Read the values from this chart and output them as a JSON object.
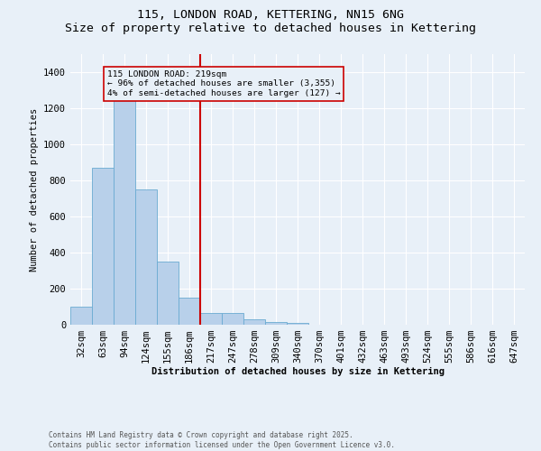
{
  "title": "115, LONDON ROAD, KETTERING, NN15 6NG",
  "subtitle": "Size of property relative to detached houses in Kettering",
  "xlabel": "Distribution of detached houses by size in Kettering",
  "ylabel": "Number of detached properties",
  "footnote1": "Contains HM Land Registry data © Crown copyright and database right 2025.",
  "footnote2": "Contains public sector information licensed under the Open Government Licence v3.0.",
  "categories": [
    "32sqm",
    "63sqm",
    "94sqm",
    "124sqm",
    "155sqm",
    "186sqm",
    "217sqm",
    "247sqm",
    "278sqm",
    "309sqm",
    "340sqm",
    "370sqm",
    "401sqm",
    "432sqm",
    "463sqm",
    "493sqm",
    "524sqm",
    "555sqm",
    "586sqm",
    "616sqm",
    "647sqm"
  ],
  "values": [
    100,
    870,
    1270,
    750,
    350,
    150,
    65,
    65,
    28,
    15,
    8,
    2,
    0,
    0,
    0,
    0,
    0,
    0,
    0,
    0,
    0
  ],
  "bar_color": "#b8d0ea",
  "bar_edge_color": "#6aabd2",
  "property_label": "115 LONDON ROAD: 219sqm",
  "annotation_line1": "← 96% of detached houses are smaller (3,355)",
  "annotation_line2": "4% of semi-detached houses are larger (127) →",
  "vline_x_index": 6.0,
  "vline_color": "#cc0000",
  "ylim": [
    0,
    1500
  ],
  "yticks": [
    0,
    200,
    400,
    600,
    800,
    1000,
    1200,
    1400
  ],
  "background_color": "#e8f0f8",
  "grid_color": "#ffffff",
  "title_fontsize": 9.5,
  "axis_fontsize": 7.5,
  "tick_fontsize": 7.5
}
